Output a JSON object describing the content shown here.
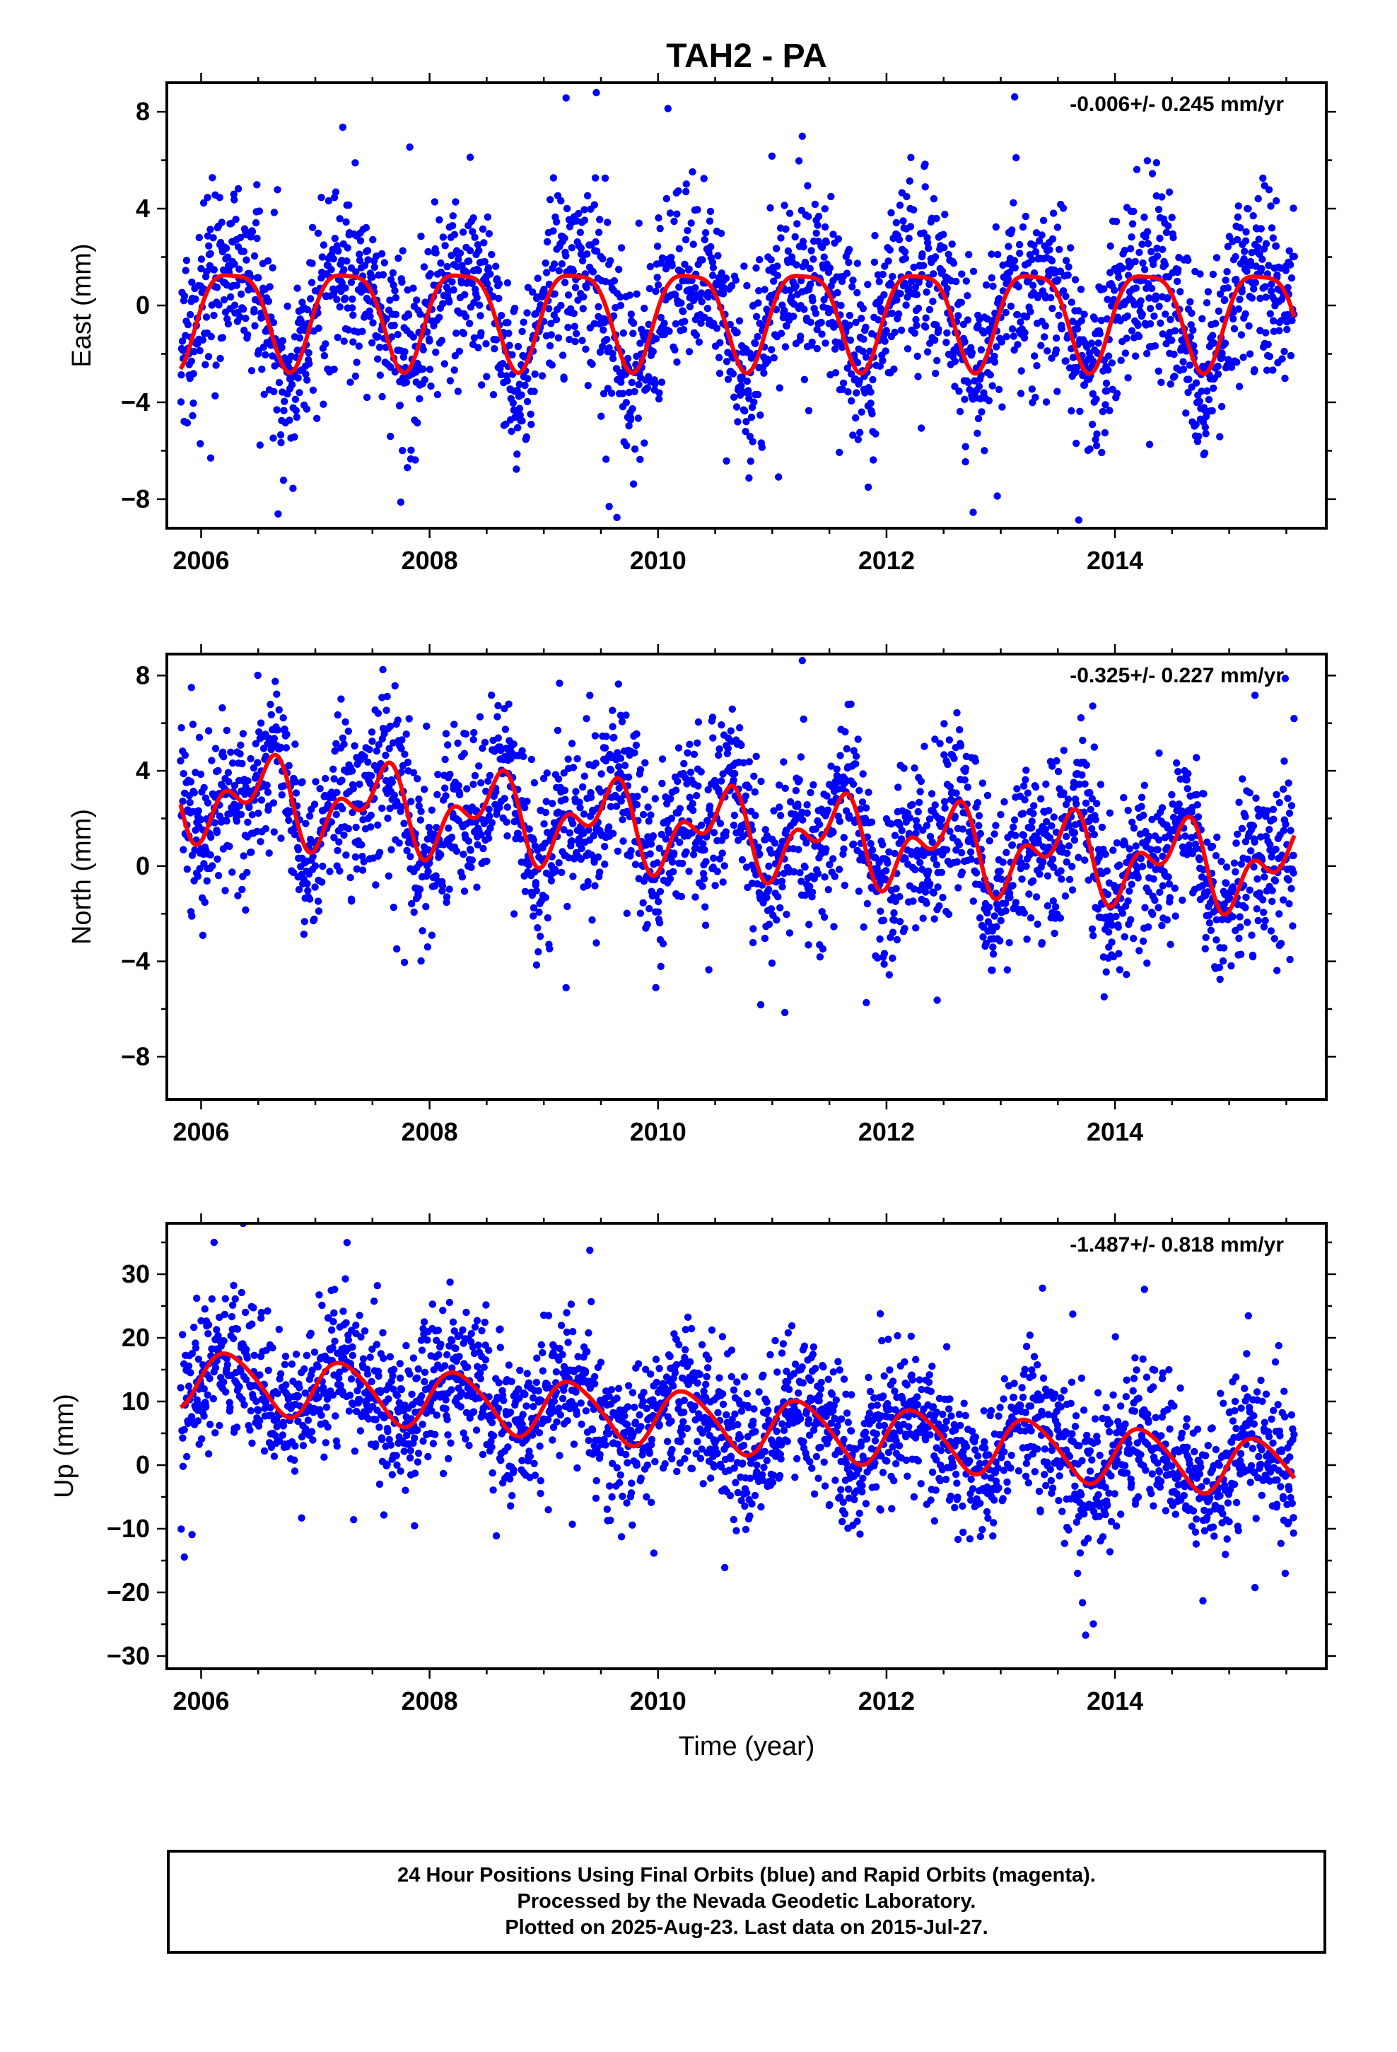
{
  "title": "TAH2 - PA",
  "colors": {
    "points": "#0000ff",
    "fit": "#ff0000",
    "frame": "#000000"
  },
  "footer": {
    "line1": "24 Hour Positions Using Final Orbits (blue) and Rapid Orbits (magenta).",
    "line2": "Processed by the Nevada Geodetic Laboratory.",
    "line3": "Plotted on 2025-Aug-23. Last data on 2015-Jul-27."
  },
  "chart_data": [
    {
      "type": "scatter",
      "component": "East",
      "ylabel": "East (mm)",
      "rate_label": "-0.006+/- 0.245 mm/yr",
      "xlim": [
        2005.7,
        2015.85
      ],
      "ylim": [
        -9.2,
        9.2
      ],
      "xticks": [
        2006,
        2008,
        2010,
        2012,
        2014
      ],
      "yticks": [
        8,
        4,
        0,
        -4,
        -8
      ],
      "ytick_labels": [
        "8",
        "4",
        "0",
        "−4",
        "−8"
      ],
      "data_start": 2005.82,
      "data_end": 2015.57,
      "fit": {
        "offset": -0.3,
        "trend": -0.006,
        "annual_amp": 2.0,
        "annual_phase": -0.15,
        "semi_amp": 0.5,
        "semi_phase": 1.2,
        "noise_sd": 1.8
      }
    },
    {
      "type": "scatter",
      "component": "North",
      "ylabel": "North (mm)",
      "rate_label": "-0.325+/- 0.227 mm/yr",
      "xlim": [
        2005.7,
        2015.85
      ],
      "ylim": [
        -9.8,
        8.9
      ],
      "xticks": [
        2006,
        2008,
        2010,
        2012,
        2014
      ],
      "yticks": [
        8,
        4,
        0,
        -4,
        -8
      ],
      "ytick_labels": [
        "8",
        "4",
        "0",
        "−4",
        "−8"
      ],
      "data_start": 2005.82,
      "data_end": 2015.57,
      "fit": {
        "offset": 1.4,
        "trend": -0.325,
        "annual_amp": 1.3,
        "annual_phase": -1.85,
        "semi_amp": 1.0,
        "semi_phase": -0.7,
        "noise_sd": 1.7
      }
    },
    {
      "type": "scatter",
      "component": "Up",
      "xlabel": "Time (year)",
      "ylabel": "Up (mm)",
      "rate_label": "-1.487+/- 0.818 mm/yr",
      "xlim": [
        2005.7,
        2015.85
      ],
      "ylim": [
        -32,
        38
      ],
      "xticks": [
        2006,
        2008,
        2010,
        2012,
        2014
      ],
      "yticks": [
        30,
        20,
        10,
        0,
        -10,
        -20,
        -30
      ],
      "ytick_labels": [
        "30",
        "20",
        "10",
        "0",
        "−10",
        "−20",
        "−30"
      ],
      "data_start": 2005.82,
      "data_end": 2015.57,
      "fit": {
        "offset": 6.5,
        "trend": -1.487,
        "annual_amp": 4.5,
        "annual_phase": 0.0,
        "semi_amp": 0.6,
        "semi_phase": 0.5,
        "noise_sd": 5.5
      }
    }
  ]
}
